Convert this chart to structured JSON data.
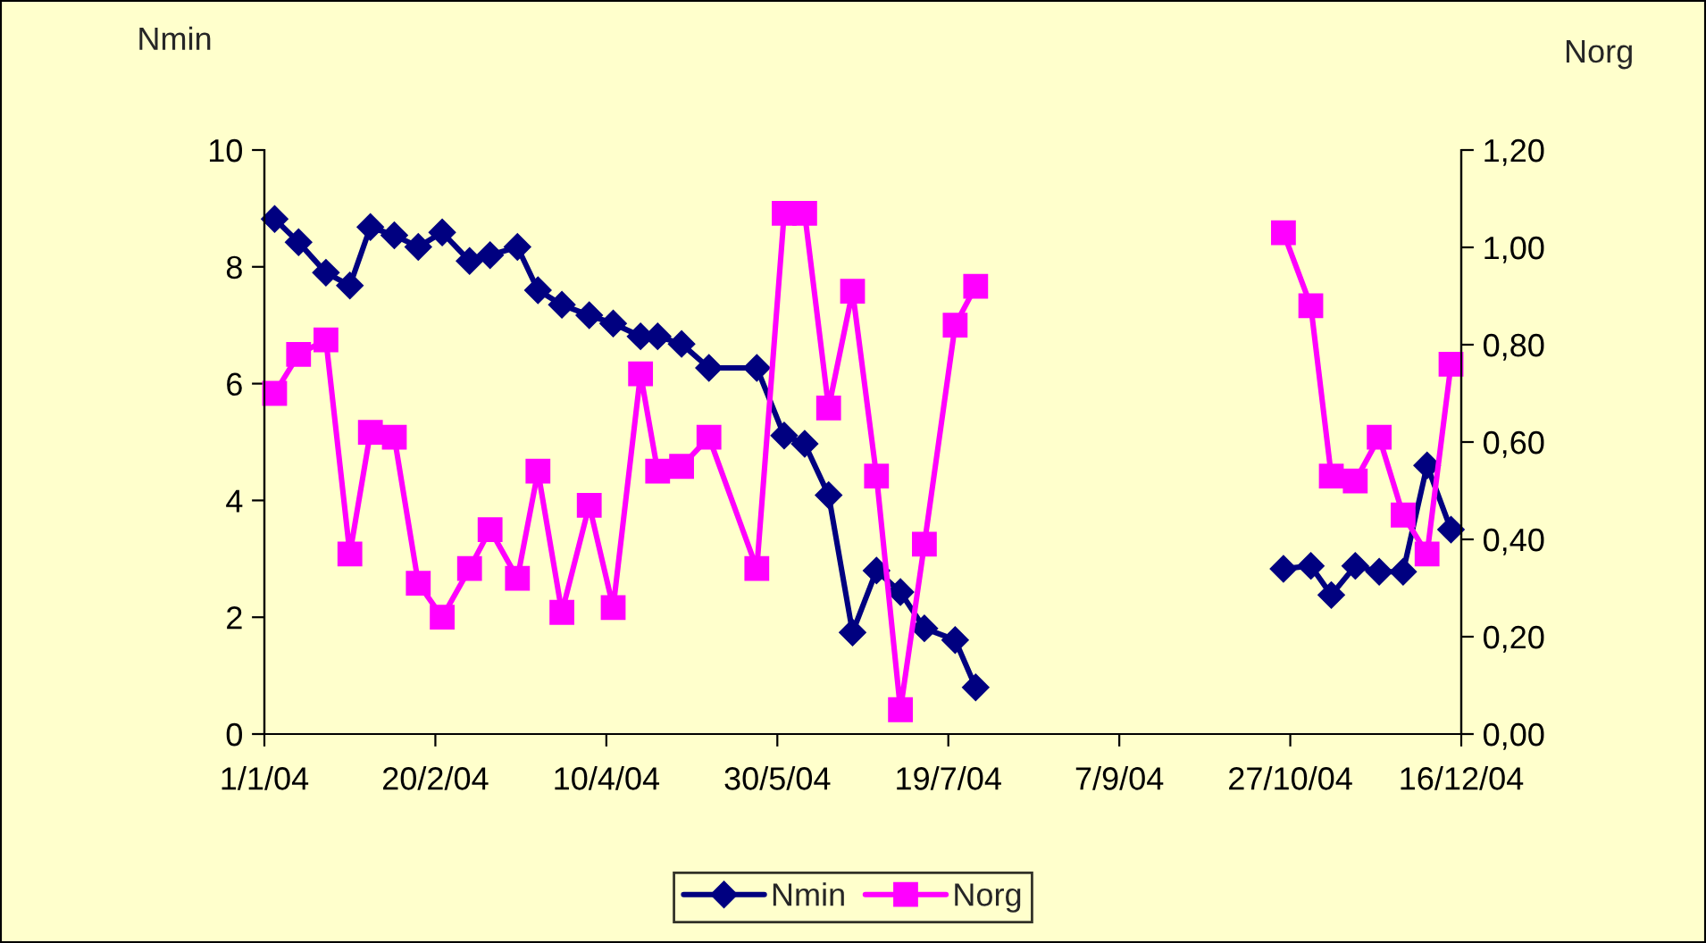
{
  "chart_data": {
    "type": "line",
    "ylabel": "Nmin",
    "y2label": "Norg",
    "x": [
      "2004-01-04",
      "2004-01-11",
      "2004-01-19",
      "2004-01-26",
      "2004-02-01",
      "2004-02-08",
      "2004-02-15",
      "2004-02-22",
      "2004-03-01",
      "2004-03-07",
      "2004-03-15",
      "2004-03-21",
      "2004-03-28",
      "2004-04-05",
      "2004-04-12",
      "2004-04-20",
      "2004-04-25",
      "2004-05-02",
      "2004-05-10",
      "2004-05-24",
      "2004-06-01",
      "2004-06-07",
      "2004-06-14",
      "2004-06-21",
      "2004-06-28",
      "2004-07-05",
      "2004-07-12",
      "2004-07-21",
      "2004-07-27",
      "2004-08-03",
      "2004-10-25",
      "2004-11-02",
      "2004-11-08",
      "2004-11-15",
      "2004-11-22",
      "2004-11-29",
      "2004-12-06",
      "2004-12-13"
    ],
    "series": [
      {
        "name": "Nmin",
        "color": "#000080",
        "marker": "diamond",
        "values": [
          8.82,
          8.42,
          7.9,
          7.68,
          8.68,
          8.54,
          8.34,
          8.59,
          8.1,
          8.2,
          8.34,
          7.6,
          7.35,
          7.17,
          7.03,
          6.81,
          6.81,
          6.68,
          6.27,
          6.27,
          5.11,
          4.97,
          4.09,
          1.74,
          2.8,
          2.43,
          1.81,
          1.61,
          0.8,
          null,
          2.83,
          2.88,
          2.38,
          2.88,
          2.78,
          2.78,
          4.6,
          3.5
        ]
      },
      {
        "name": "Norg",
        "color": "#ff00ff",
        "marker": "square",
        "axis": "y2",
        "values": [
          0.7,
          0.78,
          0.81,
          0.37,
          0.62,
          0.61,
          0.31,
          0.24,
          0.34,
          0.42,
          0.32,
          0.54,
          0.25,
          0.47,
          0.26,
          0.74,
          0.54,
          0.55,
          0.61,
          0.34,
          1.07,
          1.07,
          0.67,
          0.91,
          0.53,
          0.05,
          0.39,
          0.84,
          0.92,
          null,
          1.03,
          0.88,
          0.53,
          0.52,
          0.61,
          0.45,
          0.37,
          0.76
        ]
      }
    ],
    "xlim": [
      "2004-01-01",
      "2004-12-16"
    ],
    "xticks": [
      {
        "value": "2004-01-01",
        "label": "1/1/04"
      },
      {
        "value": "2004-02-20",
        "label": "20/2/04"
      },
      {
        "value": "2004-04-10",
        "label": "10/4/04"
      },
      {
        "value": "2004-05-30",
        "label": "30/5/04"
      },
      {
        "value": "2004-07-19",
        "label": "19/7/04"
      },
      {
        "value": "2004-09-07",
        "label": "7/9/04"
      },
      {
        "value": "2004-10-27",
        "label": "27/10/04"
      },
      {
        "value": "2004-12-16",
        "label": "16/12/04"
      }
    ],
    "ylim": [
      0,
      10
    ],
    "yticks": [
      0,
      2,
      4,
      6,
      8,
      10
    ],
    "y2lim": [
      0,
      1.2
    ],
    "y2ticks": [
      {
        "value": 0,
        "label": "0,00"
      },
      {
        "value": 0.2,
        "label": "0,20"
      },
      {
        "value": 0.4,
        "label": "0,40"
      },
      {
        "value": 0.6,
        "label": "0,60"
      },
      {
        "value": 0.8,
        "label": "0,80"
      },
      {
        "value": 1.0,
        "label": "1,00"
      },
      {
        "value": 1.2,
        "label": "1,20"
      }
    ],
    "grid": false,
    "legend": "bottom",
    "line_style": "solid"
  }
}
